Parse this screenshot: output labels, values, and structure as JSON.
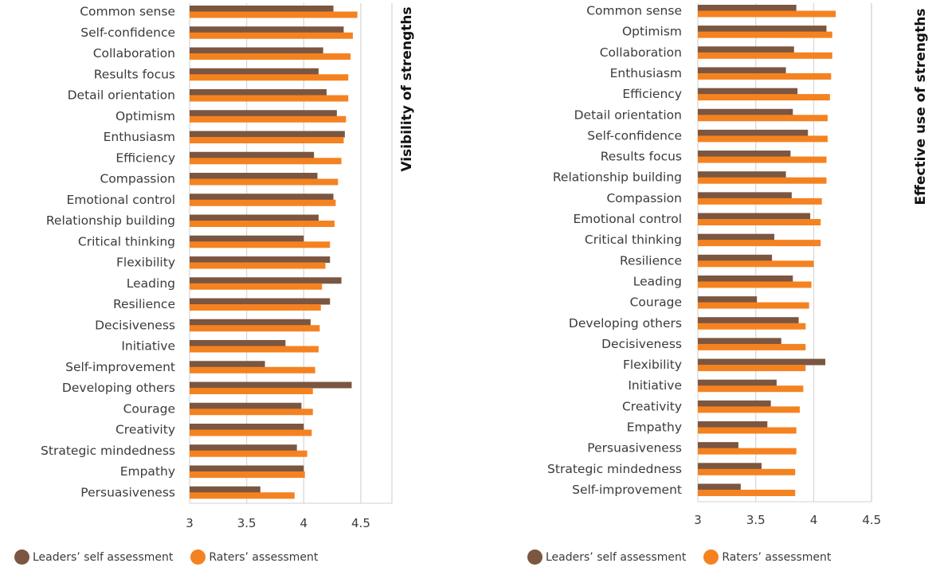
{
  "colors": {
    "self": "#7B5640",
    "raters": "#F58220",
    "grid": "#d9d9d9"
  },
  "legend": {
    "self_label": "Leaders’ self assessment",
    "raters_label": "Raters’ assessment"
  },
  "chart_data": [
    {
      "type": "bar",
      "orientation": "horizontal",
      "title": "Visibility of strengths",
      "xlabel": "",
      "ylabel": "",
      "xlim": [
        3,
        4.8
      ],
      "xticks": [
        3,
        3.5,
        4,
        4.5
      ],
      "xtick_labels": [
        "3",
        "3.5",
        "4",
        "4.5"
      ],
      "grid": true,
      "legend_position": "bottom-left",
      "categories": [
        "Common sense",
        "Self-confidence",
        "Collaboration",
        "Results focus",
        "Detail orientation",
        "Optimism",
        "Enthusiasm",
        "Efficiency",
        "Compassion",
        "Emotional control",
        "Relationship building",
        "Critical thinking",
        "Flexibility",
        "Leading",
        "Resilience",
        "Decisiveness",
        "Initiative",
        "Self-improvement",
        "Developing others",
        "Courage",
        "Creativity",
        "Strategic mindedness",
        "Empathy",
        "Persuasiveness"
      ],
      "series": [
        {
          "name": "Leaders’ self assessment",
          "values": [
            4.26,
            4.35,
            4.17,
            4.13,
            4.2,
            4.29,
            4.36,
            4.09,
            4.12,
            4.26,
            4.13,
            4.0,
            4.23,
            4.33,
            4.23,
            4.06,
            3.84,
            3.66,
            4.42,
            3.98,
            4.0,
            3.94,
            4.0,
            3.62
          ]
        },
        {
          "name": "Raters’ assessment",
          "values": [
            4.47,
            4.43,
            4.41,
            4.39,
            4.39,
            4.37,
            4.35,
            4.33,
            4.3,
            4.28,
            4.27,
            4.23,
            4.19,
            4.16,
            4.15,
            4.14,
            4.13,
            4.1,
            4.08,
            4.08,
            4.07,
            4.03,
            4.01,
            3.92
          ]
        }
      ]
    },
    {
      "type": "bar",
      "orientation": "horizontal",
      "title": "Effective use of strengths",
      "xlabel": "",
      "ylabel": "",
      "xlim": [
        3,
        4.5
      ],
      "xticks": [
        3,
        3.5,
        4,
        4.5
      ],
      "xtick_labels": [
        "3",
        "3.5",
        "4",
        "4.5"
      ],
      "grid": true,
      "legend_position": "bottom-left",
      "categories": [
        "Common sense",
        "Optimism",
        "Collaboration",
        "Enthusiasm",
        "Efficiency",
        "Detail orientation",
        "Self-confidence",
        "Results focus",
        "Relationship building",
        "Compassion",
        "Emotional control",
        "Critical thinking",
        "Resilience",
        "Leading",
        "Courage",
        "Developing others",
        "Decisiveness",
        "Flexibility",
        "Initiative",
        "Creativity",
        "Empathy",
        "Persuasiveness",
        "Strategic mindedness",
        "Self-improvement"
      ],
      "series": [
        {
          "name": "Leaders’ self assessment",
          "values": [
            3.85,
            4.11,
            3.83,
            3.76,
            3.86,
            3.82,
            3.95,
            3.8,
            3.76,
            3.81,
            3.97,
            3.66,
            3.64,
            3.82,
            3.51,
            3.87,
            3.72,
            4.1,
            3.68,
            3.63,
            3.6,
            3.35,
            3.55,
            3.37
          ]
        },
        {
          "name": "Raters’ assessment",
          "values": [
            4.19,
            4.16,
            4.16,
            4.15,
            4.14,
            4.12,
            4.12,
            4.11,
            4.11,
            4.07,
            4.06,
            4.06,
            4.0,
            3.98,
            3.96,
            3.93,
            3.93,
            3.93,
            3.91,
            3.88,
            3.85,
            3.85,
            3.84,
            3.84
          ]
        }
      ]
    }
  ]
}
